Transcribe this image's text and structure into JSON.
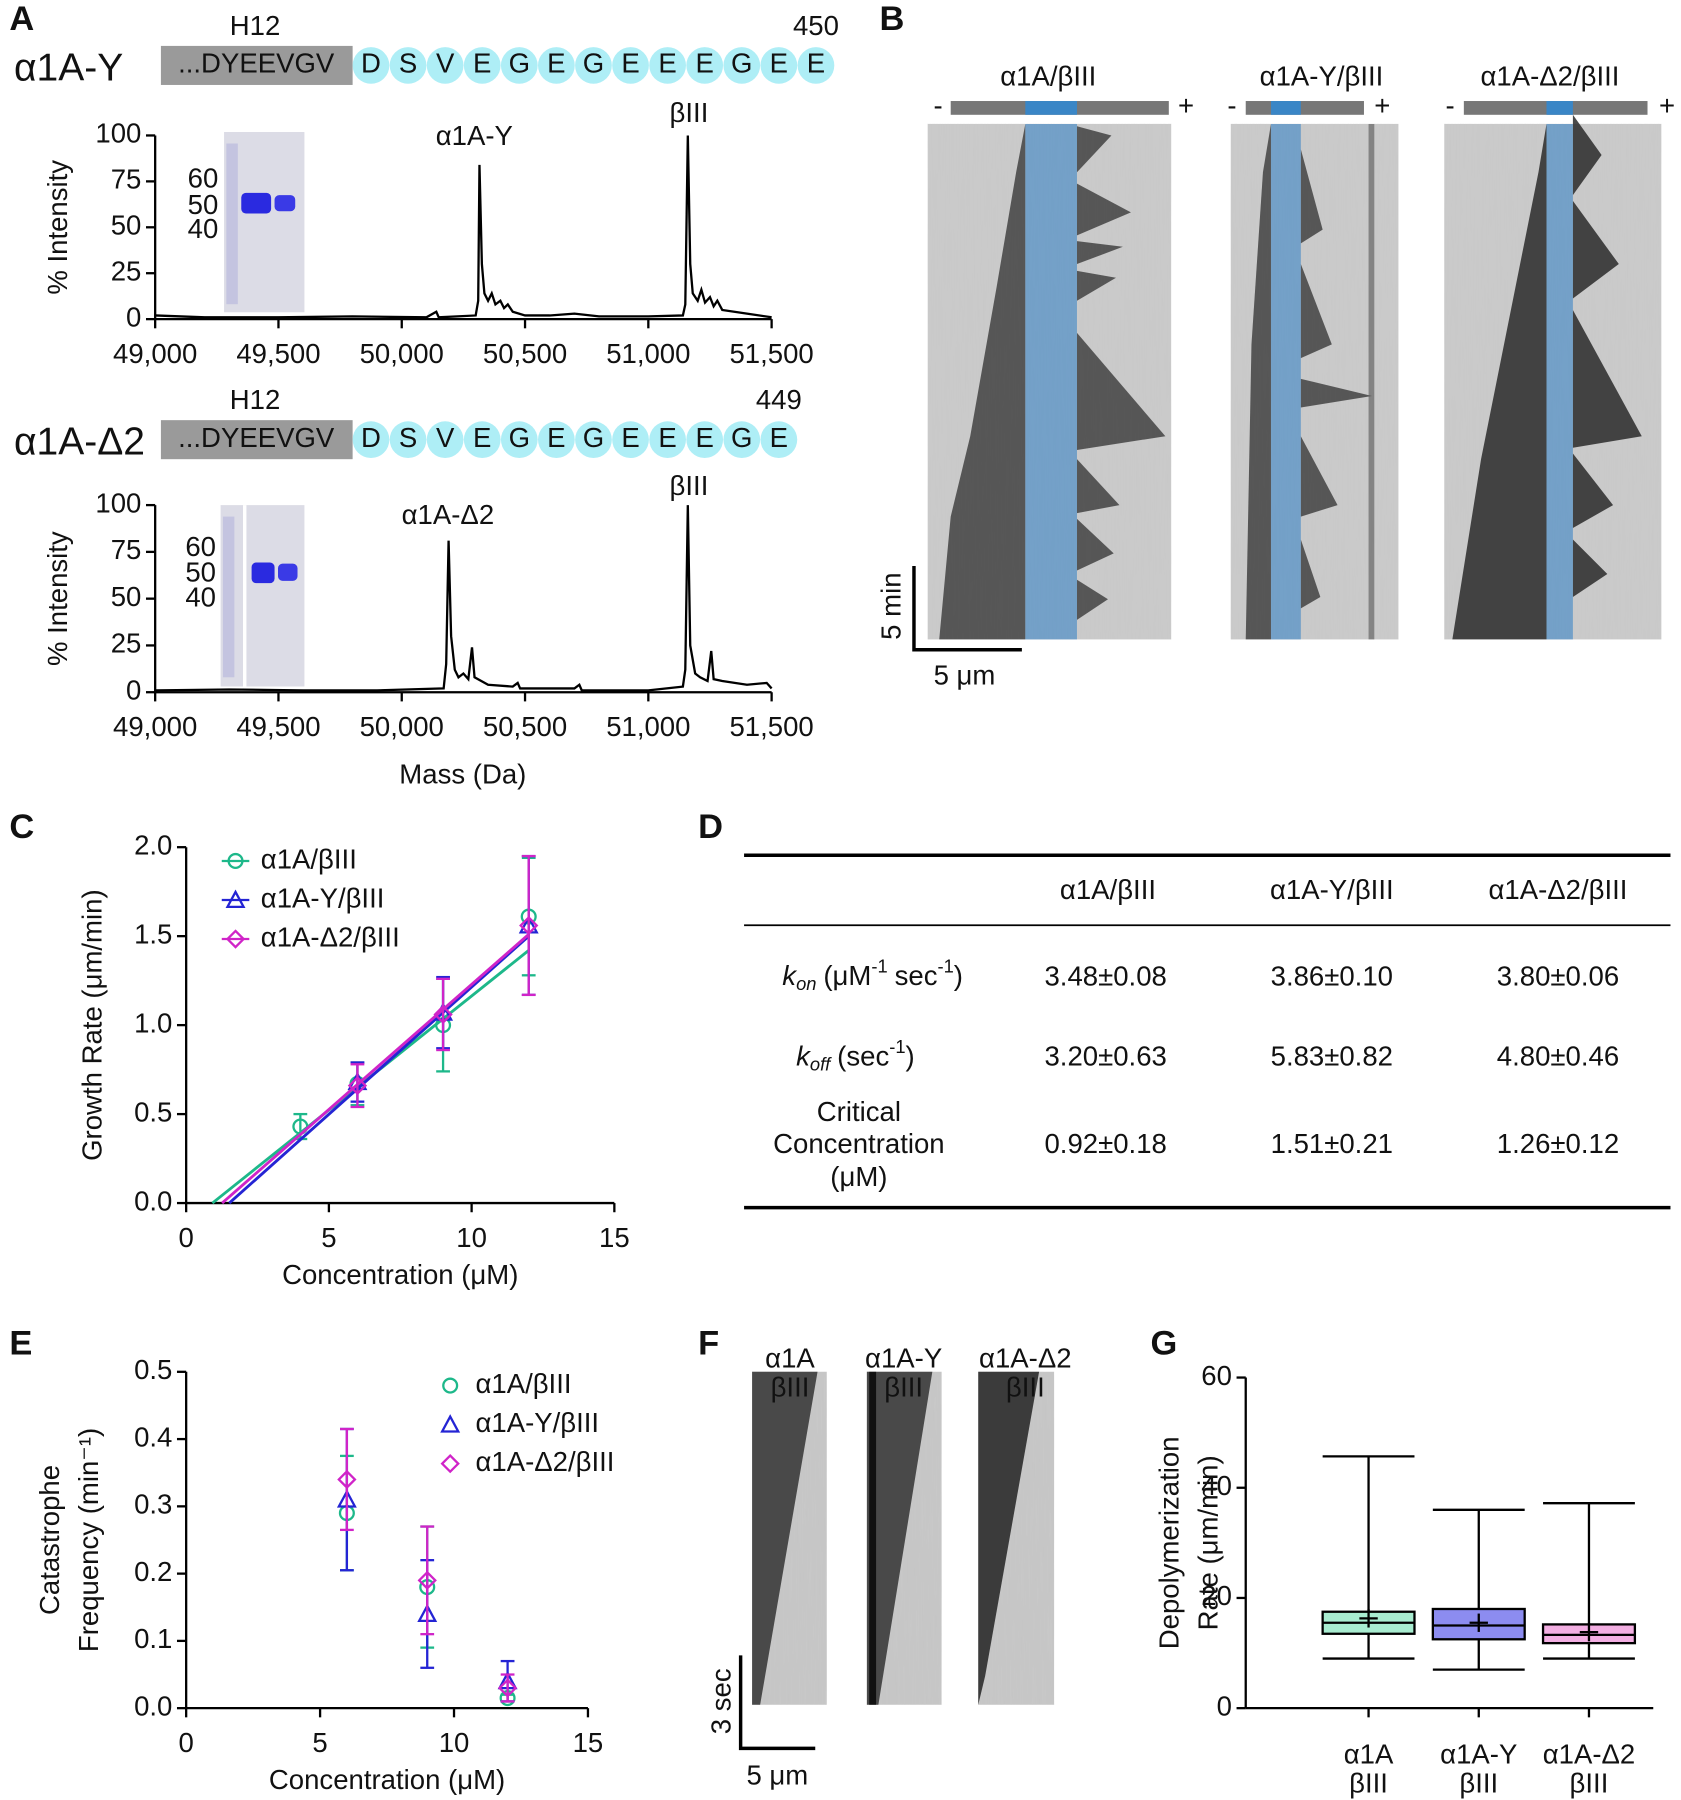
{
  "panel_letters": [
    "A",
    "B",
    "C",
    "D",
    "E",
    "F",
    "G"
  ],
  "panel_a": {
    "constructs": [
      {
        "name": "α1A-Y",
        "helix": "H12",
        "tail": "...DYEEVGV",
        "residues": [
          "D",
          "S",
          "V",
          "E",
          "G",
          "E",
          "G",
          "E",
          "E",
          "E",
          "G",
          "E",
          "E"
        ],
        "end_residue": "450"
      },
      {
        "name": "α1A-Δ2",
        "helix": "H12",
        "tail": "...DYEEVGV",
        "residues": [
          "D",
          "S",
          "V",
          "E",
          "G",
          "E",
          "G",
          "E",
          "E",
          "E",
          "G",
          "E"
        ],
        "end_residue": "449"
      }
    ],
    "gel_markers": [
      "60",
      "50",
      "40"
    ]
  },
  "panel_b": {
    "kymographs": [
      "α1A/βIII",
      "α1A-Y/βIII",
      "α1A-Δ2/βIII"
    ],
    "minus": "-",
    "plus": "+",
    "time_scale": "5 min",
    "length_scale": "5 μm"
  },
  "panel_f": {
    "kymographs": [
      [
        "α1A",
        "βIII"
      ],
      [
        "α1A-Y",
        "βIII"
      ],
      [
        "α1A-Δ2",
        "βIII"
      ]
    ],
    "time_scale": "3 sec",
    "length_scale": "5 μm"
  },
  "table": {
    "header": [
      "α1A/βIII",
      "α1A-Y/βIII",
      "α1A-Δ2/βIII"
    ],
    "rows": [
      {
        "label": [
          "k",
          "on",
          "(μM",
          "-1",
          "sec",
          "-1",
          ")"
        ],
        "cells": [
          "3.48±0.08",
          "3.86±0.10",
          "3.80±0.06"
        ]
      },
      {
        "label": [
          "k",
          "off",
          "(sec",
          "-1",
          ")"
        ],
        "cells": [
          "3.20±0.63",
          "5.83±0.82",
          "4.80±0.46"
        ]
      },
      {
        "label": [
          "Critical",
          "Concentration",
          "(μM)"
        ],
        "cells": [
          "0.92±0.18",
          "1.51±0.21",
          "1.26±0.12"
        ]
      }
    ]
  },
  "chart_data": [
    {
      "type": "line",
      "ylabel": "% Intensity",
      "color": "#000000",
      "annotations": [
        "α1A-Y",
        "βIII"
      ],
      "xlim": [
        49000,
        51500
      ],
      "xticks": [
        {
          "value": 49000,
          "label": "49,000"
        },
        {
          "value": 49500,
          "label": "49,500"
        },
        {
          "value": 50000,
          "label": "50,000"
        },
        {
          "value": 50500,
          "label": "50,500"
        },
        {
          "value": 51000,
          "label": "51,000"
        },
        {
          "value": 51500,
          "label": "51,500"
        }
      ],
      "ylim": [
        0,
        100
      ],
      "yticks": [
        0,
        25,
        50,
        75,
        100
      ],
      "x": [
        49000,
        49200,
        49500,
        49800,
        50100,
        50140,
        50150,
        50300,
        50310,
        50315,
        50325,
        50335,
        50350,
        50365,
        50380,
        50400,
        50415,
        50430,
        50450,
        50500,
        50600,
        50700,
        50800,
        51000,
        51140,
        51150,
        51160,
        51170,
        51180,
        51200,
        51215,
        51230,
        51250,
        51265,
        51280,
        51300,
        51400,
        51500
      ],
      "values": [
        2,
        1,
        1,
        1.5,
        1,
        4,
        1,
        2,
        10,
        84,
        30,
        14,
        10,
        14,
        8,
        10,
        6,
        8,
        4,
        2,
        2,
        3,
        1.5,
        1.5,
        2,
        8,
        100,
        30,
        14,
        10,
        16,
        9,
        12,
        7,
        10,
        5,
        3,
        1
      ]
    },
    {
      "type": "line",
      "ylabel": "% Intensity",
      "xlabel": "Mass (Da)",
      "color": "#000000",
      "annotations": [
        "α1A-Δ2",
        "βIII"
      ],
      "xlim": [
        49000,
        51500
      ],
      "xticks": [
        {
          "value": 49000,
          "label": "49,000"
        },
        {
          "value": 49500,
          "label": "49,500"
        },
        {
          "value": 50000,
          "label": "50,000"
        },
        {
          "value": 50500,
          "label": "50,500"
        },
        {
          "value": 51000,
          "label": "51,000"
        },
        {
          "value": 51500,
          "label": "51,500"
        }
      ],
      "ylim": [
        0,
        100
      ],
      "yticks": [
        0,
        25,
        50,
        75,
        100
      ],
      "x": [
        49000,
        49300,
        49600,
        49900,
        50170,
        50180,
        50190,
        50200,
        50215,
        50230,
        50250,
        50270,
        50285,
        50295,
        50350,
        50450,
        50470,
        50480,
        50700,
        50720,
        50730,
        51000,
        51140,
        51150,
        51160,
        51170,
        51190,
        51210,
        51240,
        51255,
        51265,
        51300,
        51400,
        51480,
        51500
      ],
      "values": [
        1,
        1.5,
        1,
        1,
        2,
        15,
        81,
        30,
        12,
        8,
        10,
        7,
        24,
        8,
        4,
        3,
        5,
        2,
        2,
        4,
        1,
        1,
        3,
        12,
        100,
        25,
        10,
        8,
        6,
        22,
        7,
        6,
        4,
        5,
        2
      ]
    },
    {
      "type": "scatter",
      "xlabel": "Concentration (μM)",
      "ylabel": "Growth Rate (μm/min)",
      "legend": "upper left",
      "xlim": [
        0,
        15
      ],
      "xticks": [
        0,
        5,
        10,
        15
      ],
      "ylim": [
        0,
        2
      ],
      "yticks": [
        {
          "value": 0,
          "label": "0.0"
        },
        {
          "value": 0.5,
          "label": "0.5"
        },
        {
          "value": 1,
          "label": "1.0"
        },
        {
          "value": 1.5,
          "label": "1.5"
        },
        {
          "value": 2,
          "label": "2.0"
        }
      ],
      "series": [
        {
          "name": "α1A/βIII",
          "color": "#1db88a",
          "marker": "circle",
          "x": [
            4,
            6,
            9,
            12
          ],
          "values": [
            0.43,
            0.67,
            1.0,
            1.61
          ],
          "errors": [
            0.07,
            0.12,
            0.26,
            0.33
          ],
          "fit": {
            "x": [
              0.92,
              12
            ],
            "values": [
              0,
              1.42
            ]
          }
        },
        {
          "name": "α1A-Y/βIII",
          "color": "#2424d4",
          "marker": "triangle",
          "x": [
            6,
            9,
            12
          ],
          "values": [
            0.68,
            1.07,
            1.56
          ],
          "errors": [
            0.11,
            0.2,
            0.39
          ],
          "fit": {
            "x": [
              1.51,
              12
            ],
            "values": [
              0,
              1.5
            ]
          }
        },
        {
          "name": "α1A-Δ2/βIII",
          "color": "#d024c8",
          "marker": "diamond",
          "x": [
            6,
            9,
            12
          ],
          "values": [
            0.66,
            1.06,
            1.56
          ],
          "errors": [
            0.12,
            0.2,
            0.39
          ],
          "fit": {
            "x": [
              1.26,
              12
            ],
            "values": [
              0,
              1.51
            ]
          }
        }
      ]
    },
    {
      "type": "scatter",
      "xlabel": "Concentration (μM)",
      "ylabel": [
        "Catastrophe",
        "Frequency (min⁻¹)"
      ],
      "legend": "upper right",
      "xlim": [
        0,
        15
      ],
      "xticks": [
        0,
        5,
        10,
        15
      ],
      "ylim": [
        0,
        0.5
      ],
      "yticks": [
        {
          "value": 0,
          "label": "0.0"
        },
        0.1,
        0.2,
        0.3,
        0.4,
        0.5
      ],
      "series": [
        {
          "name": "α1A/βIII",
          "color": "#1db88a",
          "marker": "circle",
          "x": [
            6,
            9,
            12
          ],
          "values": [
            0.29,
            0.18,
            0.015
          ],
          "errors": [
            0.085,
            0.09,
            0.005
          ]
        },
        {
          "name": "α1A-Y/βIII",
          "color": "#2424d4",
          "marker": "triangle",
          "x": [
            6,
            9,
            12
          ],
          "values": [
            0.31,
            0.14,
            0.04
          ],
          "errors": [
            0.105,
            0.08,
            0.03
          ]
        },
        {
          "name": "α1A-Δ2/βIII",
          "color": "#d024c8",
          "marker": "diamond",
          "x": [
            6,
            9,
            12
          ],
          "values": [
            0.34,
            0.19,
            0.03
          ],
          "errors": [
            0.075,
            0.08,
            0.02
          ]
        }
      ]
    },
    {
      "type": "box",
      "ylabel": [
        "Depolymerization",
        "Rate (μm/min)"
      ],
      "categories": [
        [
          "α1A",
          "βIII"
        ],
        [
          "α1A-Y",
          "βIII"
        ],
        [
          "α1A-Δ2",
          "βIII"
        ]
      ],
      "colors": [
        "#a8ecd0",
        "#8c8cf0",
        "#f2aee2"
      ],
      "ylim": [
        0,
        60
      ],
      "yticks": [
        0,
        20,
        40,
        60
      ],
      "boxes": [
        {
          "min": 9,
          "q1": 13.5,
          "median": 15.5,
          "q3": 17.5,
          "max": 45.7,
          "mean": 16.3
        },
        {
          "min": 7,
          "q1": 12.5,
          "median": 15,
          "q3": 18,
          "max": 36,
          "mean": 15.5
        },
        {
          "min": 9,
          "q1": 11.8,
          "median": 13.3,
          "q3": 15.2,
          "max": 37.2,
          "mean": 13.8
        }
      ]
    }
  ]
}
